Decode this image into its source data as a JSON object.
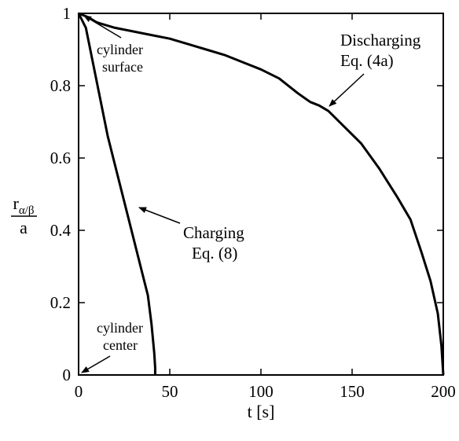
{
  "chart_data": {
    "type": "line",
    "xlabel": "t [s]",
    "ylabel": {
      "numerator": "r",
      "subscript": "α/β",
      "denominator": "a"
    },
    "xlim": [
      0,
      200
    ],
    "ylim": [
      0,
      1
    ],
    "x_ticks": [
      0,
      50,
      100,
      150,
      200
    ],
    "y_ticks": [
      0,
      0.2,
      0.4,
      0.6,
      0.8,
      1
    ],
    "x_tick_labels": [
      "0",
      "50",
      "100",
      "150",
      "200"
    ],
    "y_tick_labels": [
      "0",
      "0.2",
      "0.4",
      "0.6",
      "0.8",
      "1"
    ],
    "grid": false,
    "series": [
      {
        "id": "charging",
        "color": "#000000",
        "x": [
          0,
          4,
          8,
          12,
          16,
          20,
          24,
          28,
          32,
          35,
          38,
          40,
          41.5,
          42,
          42
        ],
        "y": [
          1,
          0.96,
          0.86,
          0.76,
          0.66,
          0.58,
          0.5,
          0.42,
          0.34,
          0.28,
          0.22,
          0.14,
          0.06,
          0.02,
          0
        ]
      },
      {
        "id": "discharging",
        "color": "#000000",
        "x": [
          0,
          5,
          10,
          20,
          30,
          40,
          50,
          60,
          70,
          80,
          90,
          100,
          110,
          120,
          127,
          132,
          137,
          145,
          155,
          165,
          175,
          182,
          188,
          193,
          197,
          199,
          200
        ],
        "y": [
          1,
          0.99,
          0.975,
          0.96,
          0.95,
          0.94,
          0.93,
          0.915,
          0.9,
          0.885,
          0.865,
          0.845,
          0.82,
          0.78,
          0.755,
          0.745,
          0.73,
          0.69,
          0.64,
          0.57,
          0.49,
          0.43,
          0.34,
          0.26,
          0.17,
          0.08,
          0
        ]
      }
    ],
    "annotations": [
      {
        "id": "cylinder-surface",
        "lines": [
          "cylinder",
          "surface"
        ],
        "arrow_to": [
          2,
          1
        ]
      },
      {
        "id": "discharging",
        "lines": [
          "Discharging",
          "Eq. (4a)"
        ],
        "arrow_to": [
          137,
          0.73
        ]
      },
      {
        "id": "charging",
        "lines": [
          "Charging",
          "Eq. (8)"
        ],
        "arrow_to": [
          28,
          0.44
        ]
      },
      {
        "id": "cylinder-center",
        "lines": [
          "cylinder",
          "center"
        ],
        "arrow_to": [
          0,
          0
        ]
      }
    ]
  }
}
